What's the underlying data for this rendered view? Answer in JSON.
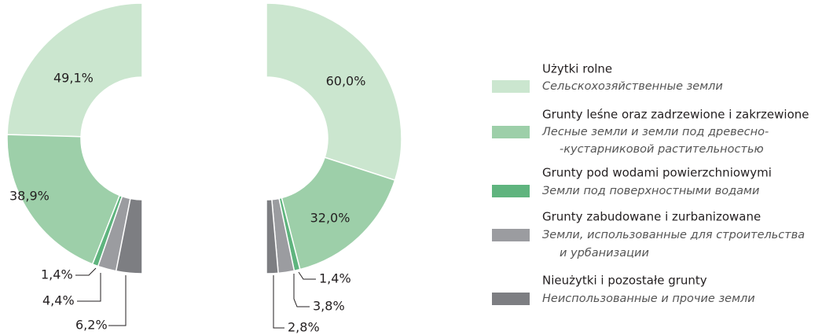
{
  "chart_data": [
    {
      "type": "pie",
      "categories": [
        "Użytki rolne",
        "Grunty leśne oraz zadrzewione i zakrzewione",
        "Grunty pod wodami powierzchniowymi",
        "Grunty zabudowane i zurbanizowane",
        "Nieużytki i pozostałe grunty"
      ],
      "subtitles": [
        [
          "Сельскохозяйственные земли"
        ],
        [
          "Лесные земли и земли под древесно-",
          "-кустарниковой растительностью"
        ],
        [
          "Земли под поверхностными водами"
        ],
        [
          "Земли, использованные для строительства",
          "и урбанизации"
        ],
        [
          "Неиспользованные и прочие земли"
        ]
      ],
      "colors": [
        "#cbe6cf",
        "#9dcfa9",
        "#5fb47e",
        "#9b9ca0",
        "#7d7e82"
      ],
      "values": [
        49.1,
        38.9,
        1.4,
        4.4,
        6.2
      ],
      "value_labels": [
        "49,1%",
        "38,9%",
        "1,4%",
        "4,4%",
        "6,2%"
      ]
    },
    {
      "type": "pie",
      "values": [
        60.0,
        32.0,
        1.4,
        3.8,
        2.8
      ],
      "value_labels": [
        "60,0%",
        "32,0%",
        "1,4%",
        "3,8%",
        "2,8%"
      ]
    }
  ]
}
